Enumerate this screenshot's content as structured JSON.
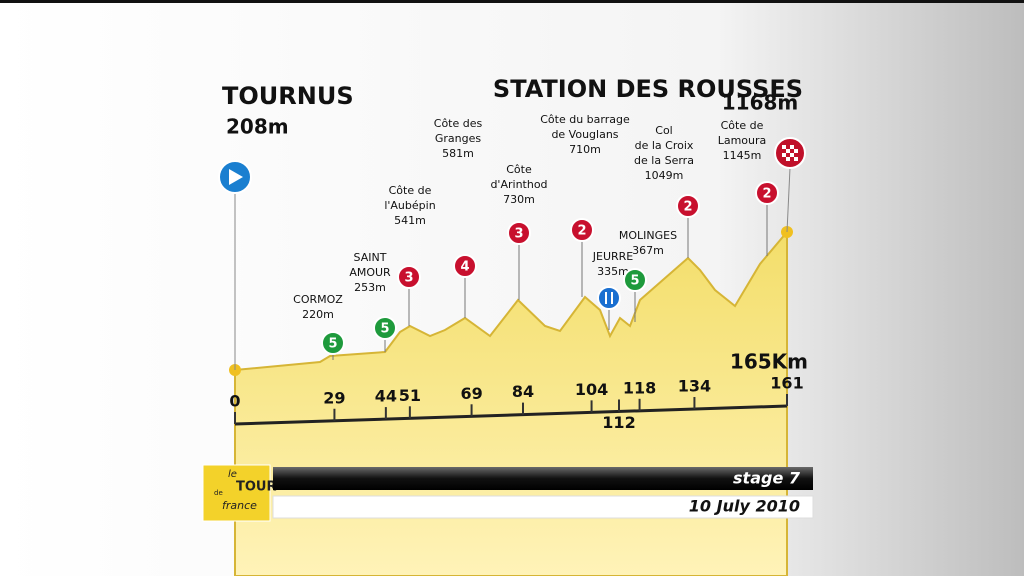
{
  "start": {
    "name": "TOURNUS",
    "altitude": "208m"
  },
  "finish": {
    "name": "STATION DES ROUSSES",
    "altitude": "1168m"
  },
  "distance": "165Km",
  "km_markers": [
    0,
    29,
    44,
    51,
    69,
    84,
    104,
    112,
    118,
    134,
    161
  ],
  "points": [
    {
      "name": [
        "CORMOZ"
      ],
      "altitude": "220m",
      "category": 5
    },
    {
      "name": [
        "SAINT",
        "AMOUR"
      ],
      "altitude": "253m",
      "category": 5
    },
    {
      "name": [
        "Côte de",
        "l'Aubépin"
      ],
      "altitude": "541m",
      "category": 3
    },
    {
      "name": [
        "Côte des",
        "Granges"
      ],
      "altitude": "581m",
      "category": 4
    },
    {
      "name": [
        "Côte",
        "d'Arinthod"
      ],
      "altitude": "730m",
      "category": 3
    },
    {
      "name": [
        "Côte du barrage",
        "de Vouglans"
      ],
      "altitude": "710m",
      "category": 2
    },
    {
      "name": [
        "JEURRE"
      ],
      "altitude": "335m"
    },
    {
      "name": [
        "MOLINGES"
      ],
      "altitude": "367m",
      "category": 5
    },
    {
      "name": [
        "Col",
        "de la Croix",
        "de la Serra"
      ],
      "altitude": "1049m",
      "category": 2
    },
    {
      "name": [
        "Côte de",
        "Lamoura"
      ],
      "altitude": "1145m",
      "category": 2
    }
  ],
  "logo": [
    "le",
    "TOUR",
    "de",
    "france"
  ],
  "banner": {
    "stage": "stage 7",
    "date": "10 July 2010"
  }
}
